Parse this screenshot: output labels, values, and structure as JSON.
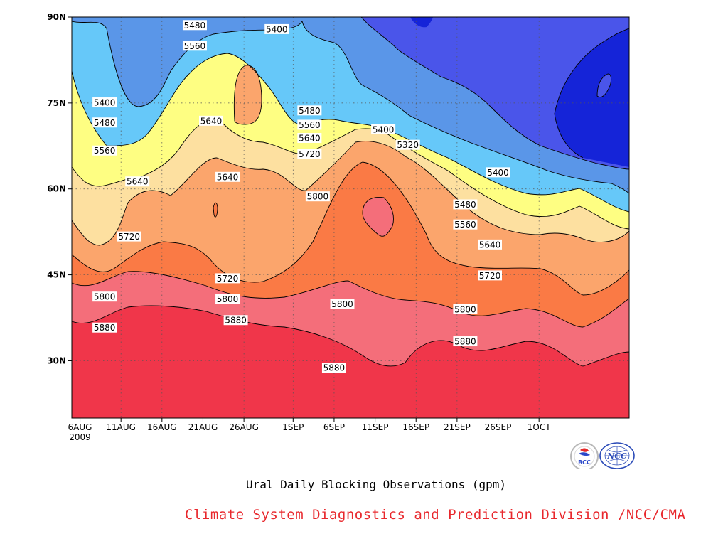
{
  "chart_data": {
    "type": "heatmap",
    "subtitle": "Ural Daily Blocking Observations (gpm)",
    "credit": "Climate System Diagnostics and Prediction Division /NCC/CMA",
    "x_axis": {
      "range": [
        "2009-08-05",
        "2009-10-12"
      ],
      "ticks": [
        {
          "date": "2009-08-06",
          "label": "6AUG",
          "sublabel": "2009"
        },
        {
          "date": "2009-08-11",
          "label": "11AUG"
        },
        {
          "date": "2009-08-16",
          "label": "16AUG"
        },
        {
          "date": "2009-08-21",
          "label": "21AUG"
        },
        {
          "date": "2009-08-26",
          "label": "26AUG"
        },
        {
          "date": "2009-09-01",
          "label": "1SEP"
        },
        {
          "date": "2009-09-06",
          "label": "6SEP"
        },
        {
          "date": "2009-09-11",
          "label": "11SEP"
        },
        {
          "date": "2009-09-16",
          "label": "16SEP"
        },
        {
          "date": "2009-09-21",
          "label": "21SEP"
        },
        {
          "date": "2009-09-26",
          "label": "26SEP"
        },
        {
          "date": "2009-10-01",
          "label": "1OCT"
        }
      ]
    },
    "y_axis": {
      "range": [
        20,
        90
      ],
      "ticks": [
        {
          "value": 30,
          "label": "30N"
        },
        {
          "value": 45,
          "label": "45N"
        },
        {
          "value": 60,
          "label": "60N"
        },
        {
          "value": 75,
          "label": "75N"
        },
        {
          "value": 90,
          "label": "90N"
        }
      ]
    },
    "grid": true,
    "levels": [
      5240,
      5320,
      5400,
      5480,
      5560,
      5640,
      5720,
      5800,
      5880
    ],
    "colors": {
      "above_5880": "#f0364a",
      "5800_5880": "#f46e7a",
      "5720_5800": "#fa7a45",
      "5640_5720": "#fba56c",
      "5560_5640": "#fde0a0",
      "5480_5560": "#fefe82",
      "5400_5480": "#66c8f9",
      "5320_5400": "#5a96e8",
      "5240_5320": "#4a55ea",
      "below_5240": "#1524d8"
    },
    "contour_labels": [
      {
        "date": "2009-08-20",
        "lat": 88.6,
        "value": "5480"
      },
      {
        "date": "2009-08-20",
        "lat": 85.0,
        "value": "5560"
      },
      {
        "date": "2009-08-30",
        "lat": 87.9,
        "value": "5400"
      },
      {
        "date": "2009-08-09",
        "lat": 75.1,
        "value": "5400"
      },
      {
        "date": "2009-08-09",
        "lat": 71.6,
        "value": "5480"
      },
      {
        "date": "2009-08-09",
        "lat": 66.7,
        "value": "5560"
      },
      {
        "date": "2009-08-13",
        "lat": 61.3,
        "value": "5640"
      },
      {
        "date": "2009-08-22",
        "lat": 71.9,
        "value": "5640"
      },
      {
        "date": "2009-08-24",
        "lat": 62.1,
        "value": "5640"
      },
      {
        "date": "2009-08-12",
        "lat": 51.7,
        "value": "5720"
      },
      {
        "date": "2009-08-09",
        "lat": 41.2,
        "value": "5800"
      },
      {
        "date": "2009-08-09",
        "lat": 35.8,
        "value": "5880"
      },
      {
        "date": "2009-09-03",
        "lat": 73.7,
        "value": "5480"
      },
      {
        "date": "2009-09-03",
        "lat": 71.2,
        "value": "5560"
      },
      {
        "date": "2009-09-03",
        "lat": 68.9,
        "value": "5640"
      },
      {
        "date": "2009-09-03",
        "lat": 66.1,
        "value": "5720"
      },
      {
        "date": "2009-09-04",
        "lat": 58.7,
        "value": "5800"
      },
      {
        "date": "2009-08-24",
        "lat": 44.4,
        "value": "5720"
      },
      {
        "date": "2009-08-24",
        "lat": 40.8,
        "value": "5800"
      },
      {
        "date": "2009-08-25",
        "lat": 37.1,
        "value": "5880"
      },
      {
        "date": "2009-09-07",
        "lat": 39.9,
        "value": "5800"
      },
      {
        "date": "2009-09-06",
        "lat": 28.8,
        "value": "5880"
      },
      {
        "date": "2009-09-12",
        "lat": 70.4,
        "value": "5400"
      },
      {
        "date": "2009-09-15",
        "lat": 67.7,
        "value": "5320"
      },
      {
        "date": "2009-09-26",
        "lat": 62.9,
        "value": "5400"
      },
      {
        "date": "2009-09-22",
        "lat": 57.3,
        "value": "5480"
      },
      {
        "date": "2009-09-22",
        "lat": 53.8,
        "value": "5560"
      },
      {
        "date": "2009-09-25",
        "lat": 50.3,
        "value": "5640"
      },
      {
        "date": "2009-09-25",
        "lat": 44.9,
        "value": "5720"
      },
      {
        "date": "2009-09-22",
        "lat": 39.0,
        "value": "5800"
      },
      {
        "date": "2009-09-22",
        "lat": 33.4,
        "value": "5880"
      }
    ]
  },
  "logos": [
    {
      "name": "bcc-logo",
      "text": "BCC"
    },
    {
      "name": "ncc-logo",
      "text": "NCC"
    }
  ]
}
